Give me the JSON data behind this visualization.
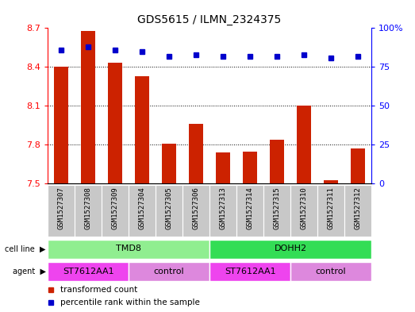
{
  "title": "GDS5615 / ILMN_2324375",
  "samples": [
    "GSM1527307",
    "GSM1527308",
    "GSM1527309",
    "GSM1527304",
    "GSM1527305",
    "GSM1527306",
    "GSM1527313",
    "GSM1527314",
    "GSM1527315",
    "GSM1527310",
    "GSM1527311",
    "GSM1527312"
  ],
  "bar_values": [
    8.4,
    8.68,
    8.43,
    8.33,
    7.81,
    7.96,
    7.74,
    7.75,
    7.84,
    8.1,
    7.53,
    7.77
  ],
  "percentile_values": [
    86,
    88,
    86,
    85,
    82,
    83,
    82,
    82,
    82,
    83,
    81,
    82
  ],
  "ylim_left": [
    7.5,
    8.7
  ],
  "ylim_right": [
    0,
    100
  ],
  "bar_color": "#cc2200",
  "dot_color": "#0000cc",
  "yticks_left": [
    7.5,
    7.8,
    8.1,
    8.4,
    8.7
  ],
  "yticks_right_vals": [
    0,
    25,
    50,
    75,
    100
  ],
  "yticks_right_labels": [
    "0",
    "25",
    "50",
    "75",
    "100%"
  ],
  "grid_lines": [
    7.8,
    8.1,
    8.4
  ],
  "cell_line_groups": [
    {
      "label": "TMD8",
      "start": 0,
      "end": 6,
      "color": "#90EE90"
    },
    {
      "label": "DOHH2",
      "start": 6,
      "end": 12,
      "color": "#33DD55"
    }
  ],
  "agent_groups": [
    {
      "label": "ST7612AA1",
      "start": 0,
      "end": 3,
      "color": "#EE44EE"
    },
    {
      "label": "control",
      "start": 3,
      "end": 6,
      "color": "#DD88DD"
    },
    {
      "label": "ST7612AA1",
      "start": 6,
      "end": 9,
      "color": "#EE44EE"
    },
    {
      "label": "control",
      "start": 9,
      "end": 12,
      "color": "#DD88DD"
    }
  ],
  "sample_bg_color": "#C8C8C8",
  "sample_sep_color": "#FFFFFF",
  "legend_bar_label": "transformed count",
  "legend_dot_label": "percentile rank within the sample",
  "cell_line_row_label": "cell line",
  "agent_row_label": "agent",
  "bar_width": 0.55
}
